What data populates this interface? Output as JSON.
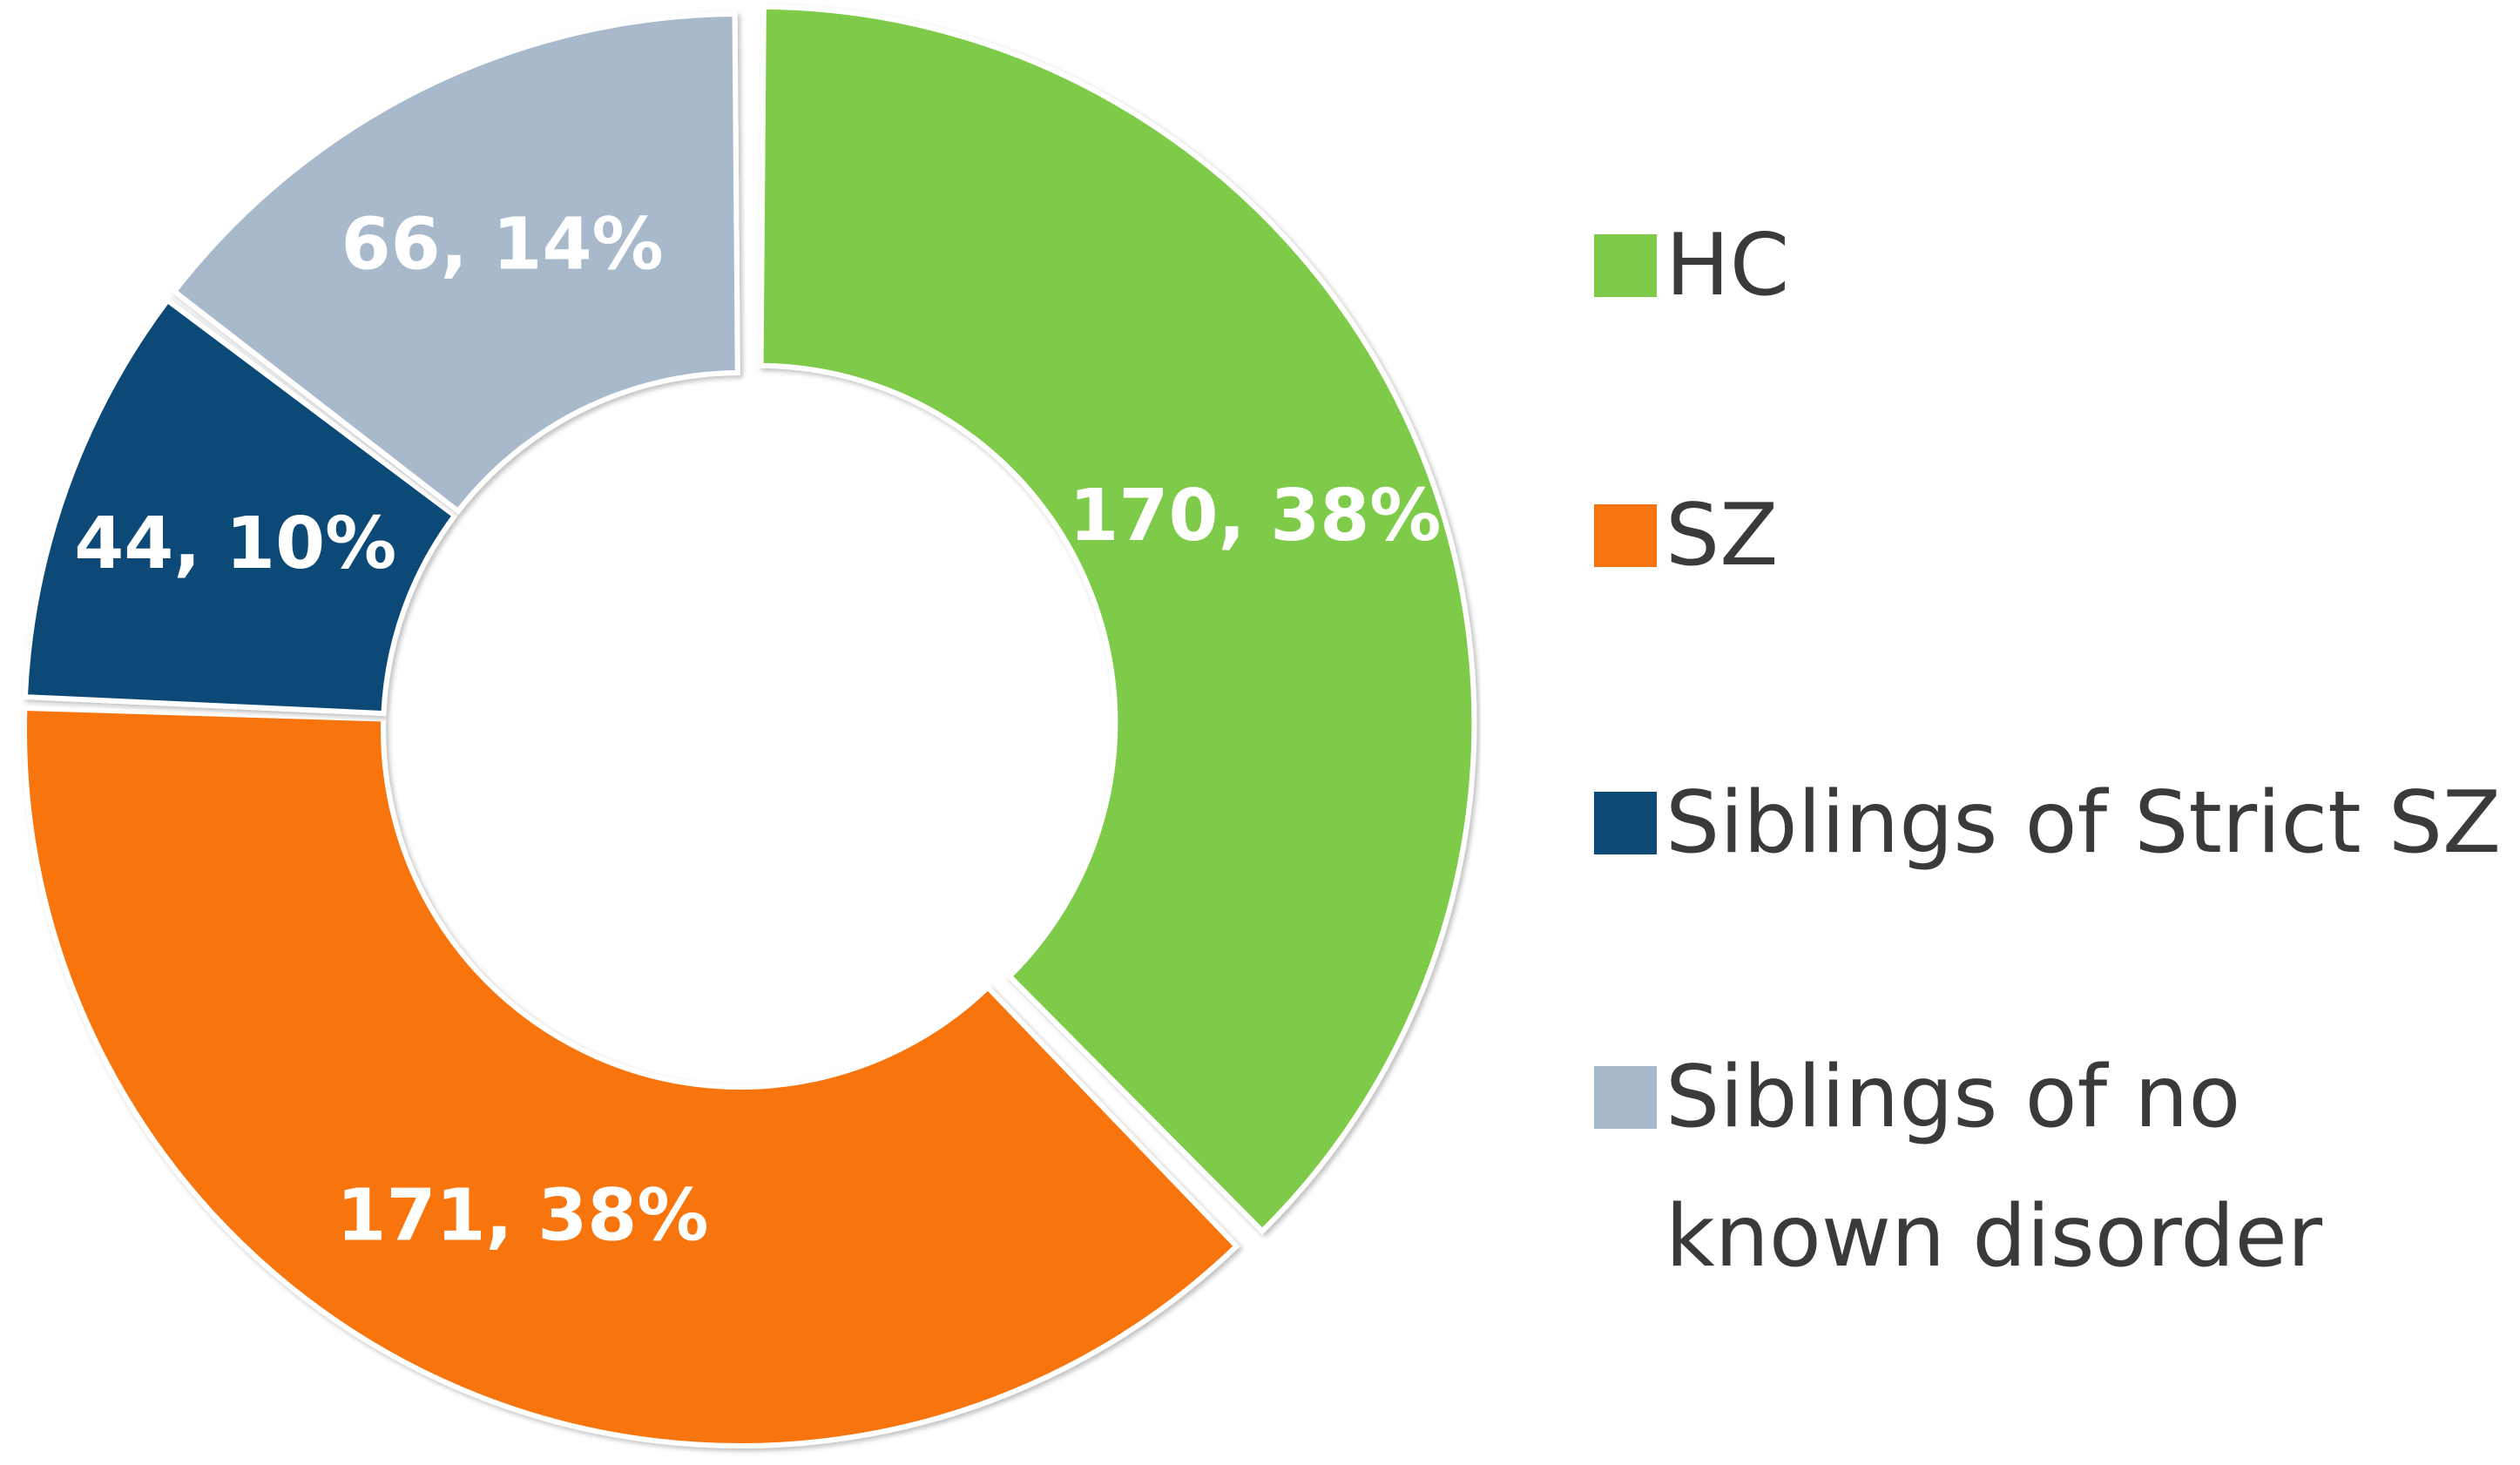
{
  "chart_data": {
    "type": "pie",
    "variant": "donut",
    "categories": [
      "HC",
      "SZ",
      "Siblings of Strict SZ",
      "Siblings of no known disorder"
    ],
    "values": [
      170,
      171,
      44,
      66
    ],
    "percents": [
      38,
      38,
      10,
      14
    ],
    "data_labels": [
      "170, 38%",
      "171, 38%",
      "44, 10%",
      "66, 14%"
    ],
    "colors": [
      "#7ecb4a",
      "#f87411",
      "#0d4a76",
      "#a9b9cc"
    ],
    "label_colors": [
      "#ffffff",
      "#ffffff",
      "#ffffff",
      "#ffffff"
    ],
    "start_angle_deg": 0,
    "direction": "clockwise",
    "exploded": [
      "HC"
    ],
    "legend_position": "right"
  },
  "legend": {
    "items": [
      {
        "label": "HC",
        "color": "#7ecb4a"
      },
      {
        "label": "SZ",
        "color": "#f87411"
      },
      {
        "label": "Siblings of Strict SZ",
        "color": "#0d4a76"
      },
      {
        "label": "Siblings of no known disorder",
        "color": "#a9b9cc"
      }
    ]
  }
}
